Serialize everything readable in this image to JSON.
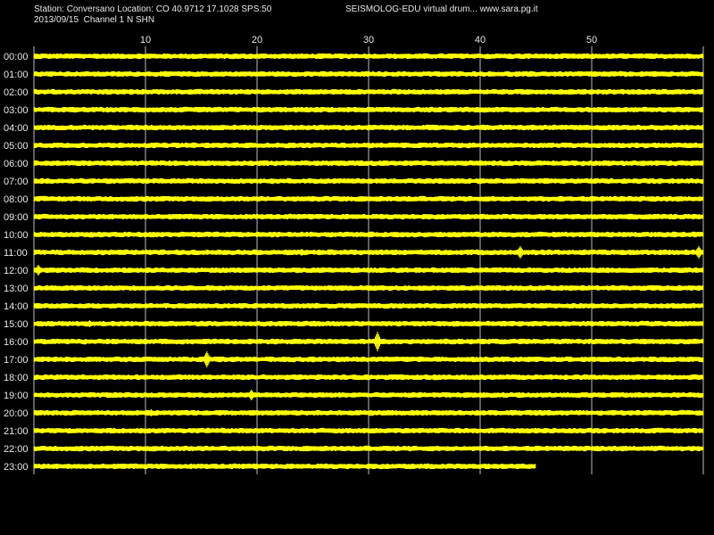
{
  "header": {
    "station_line": "Station: Conversano Location: CO 40.9712 17.1028 SPS:50",
    "date_channel_line": "2013/09/15  Channel 1 N SHN",
    "site_title": "SEISMOLOG-EDU virtual drum... www.sara.pg.it"
  },
  "colors": {
    "background": "#000000",
    "trace": "#ffff00",
    "grid": "#ffffff",
    "text": "#e8e8e8"
  },
  "chart_data": {
    "type": "line",
    "grid": true,
    "x_ticks": [
      10,
      20,
      30,
      40,
      50
    ],
    "xlim": [
      0,
      60
    ],
    "rows": [
      {
        "label": "00:00",
        "end": 60,
        "events": []
      },
      {
        "label": "01:00",
        "end": 60,
        "events": []
      },
      {
        "label": "02:00",
        "end": 60,
        "events": []
      },
      {
        "label": "03:00",
        "end": 60,
        "events": []
      },
      {
        "label": "04:00",
        "end": 60,
        "events": []
      },
      {
        "label": "05:00",
        "end": 60,
        "events": []
      },
      {
        "label": "06:00",
        "end": 60,
        "events": []
      },
      {
        "label": "07:00",
        "end": 60,
        "events": []
      },
      {
        "label": "08:00",
        "end": 60,
        "events": []
      },
      {
        "label": "09:00",
        "end": 60,
        "events": []
      },
      {
        "label": "10:00",
        "end": 60,
        "events": []
      },
      {
        "label": "11:00",
        "end": 60,
        "events": [
          {
            "t": 24.0,
            "amp": 2
          },
          {
            "t": 43.6,
            "amp": 5
          },
          {
            "t": 59.6,
            "amp": 5
          }
        ]
      },
      {
        "label": "12:00",
        "end": 60,
        "events": [
          {
            "t": 0.4,
            "amp": 4
          }
        ]
      },
      {
        "label": "13:00",
        "end": 60,
        "events": []
      },
      {
        "label": "14:00",
        "end": 60,
        "events": []
      },
      {
        "label": "15:00",
        "end": 60,
        "events": [
          {
            "t": 5.0,
            "amp": 2
          }
        ]
      },
      {
        "label": "16:00",
        "end": 60,
        "events": [
          {
            "t": 30.8,
            "amp": 9
          }
        ]
      },
      {
        "label": "17:00",
        "end": 60,
        "events": [
          {
            "t": 15.5,
            "amp": 7
          }
        ]
      },
      {
        "label": "18:00",
        "end": 60,
        "events": []
      },
      {
        "label": "19:00",
        "end": 60,
        "events": [
          {
            "t": 19.5,
            "amp": 4
          }
        ]
      },
      {
        "label": "20:00",
        "end": 60,
        "events": [
          {
            "t": 10.5,
            "amp": 2
          }
        ]
      },
      {
        "label": "21:00",
        "end": 60,
        "events": []
      },
      {
        "label": "22:00",
        "end": 60,
        "events": []
      },
      {
        "label": "23:00",
        "end": 45,
        "events": []
      }
    ]
  }
}
